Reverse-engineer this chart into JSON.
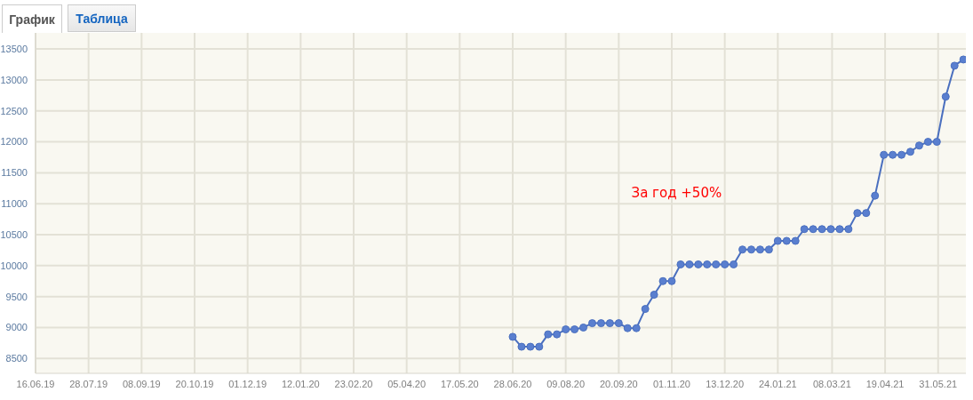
{
  "chart_data": {
    "type": "line",
    "annotations": [
      "График",
      "Таблица",
      "За год +50%"
    ],
    "x": [
      "2020-06-28",
      "2020-07-05",
      "2020-07-12",
      "2020-07-19",
      "2020-07-26",
      "2020-08-02",
      "2020-08-09",
      "2020-08-16",
      "2020-08-23",
      "2020-08-30",
      "2020-09-06",
      "2020-09-13",
      "2020-09-20",
      "2020-09-27",
      "2020-10-04",
      "2020-10-11",
      "2020-10-18",
      "2020-10-25",
      "2020-11-01",
      "2020-11-08",
      "2020-11-15",
      "2020-11-22",
      "2020-11-29",
      "2020-12-06",
      "2020-12-13",
      "2020-12-20",
      "2020-12-27",
      "2021-01-03",
      "2021-01-10",
      "2021-01-17",
      "2021-01-24",
      "2021-01-31",
      "2021-02-07",
      "2021-02-14",
      "2021-02-21",
      "2021-02-28",
      "2021-03-07",
      "2021-03-14",
      "2021-03-21",
      "2021-03-28",
      "2021-04-04",
      "2021-04-11",
      "2021-04-18",
      "2021-04-25",
      "2021-05-02",
      "2021-05-09",
      "2021-05-16",
      "2021-05-23",
      "2021-05-30",
      "2021-06-06",
      "2021-06-13",
      "2021-06-20"
    ],
    "series": [
      {
        "color": "#4a6fbf",
        "values": [
          8850,
          8690,
          8690,
          8690,
          8890,
          8890,
          8970,
          8970,
          9000,
          9070,
          9070,
          9070,
          9070,
          8990,
          8990,
          9300,
          9530,
          9750,
          9750,
          10020,
          10020,
          10020,
          10020,
          10020,
          10020,
          10020,
          10260,
          10260,
          10260,
          10260,
          10400,
          10400,
          10400,
          10590,
          10590,
          10590,
          10590,
          10590,
          10590,
          10850,
          10850,
          11130,
          11790,
          11790,
          11790,
          11840,
          11940,
          12000,
          12000,
          12730,
          13230,
          13330
        ]
      }
    ],
    "xlim": [
      "2019-06-16",
      "2021-06-22"
    ],
    "xticks": [
      {
        "value": "2019-06-16",
        "label": "16.06.19"
      },
      {
        "value": "2019-07-28",
        "label": "28.07.19"
      },
      {
        "value": "2019-09-08",
        "label": "08.09.19"
      },
      {
        "value": "2019-10-20",
        "label": "20.10.19"
      },
      {
        "value": "2019-12-01",
        "label": "01.12.19"
      },
      {
        "value": "2020-01-12",
        "label": "12.01.20"
      },
      {
        "value": "2020-02-23",
        "label": "23.02.20"
      },
      {
        "value": "2020-04-05",
        "label": "05.04.20"
      },
      {
        "value": "2020-05-17",
        "label": "17.05.20"
      },
      {
        "value": "2020-06-28",
        "label": "28.06.20"
      },
      {
        "value": "2020-08-09",
        "label": "09.08.20"
      },
      {
        "value": "2020-09-20",
        "label": "20.09.20"
      },
      {
        "value": "2020-11-01",
        "label": "01.11.20"
      },
      {
        "value": "2020-12-13",
        "label": "13.12.20"
      },
      {
        "value": "2021-01-24",
        "label": "24.01.21"
      },
      {
        "value": "2021-03-08",
        "label": "08.03.21"
      },
      {
        "value": "2021-04-19",
        "label": "19.04.21"
      },
      {
        "value": "2021-05-31",
        "label": "31.05.21"
      }
    ],
    "ylim": [
      8260,
      13760
    ],
    "yticks": [
      8500,
      9000,
      9500,
      10000,
      10500,
      11000,
      11500,
      12000,
      12500,
      13000,
      13500
    ],
    "grid": true,
    "marker": "circle",
    "line_style": "solid"
  }
}
